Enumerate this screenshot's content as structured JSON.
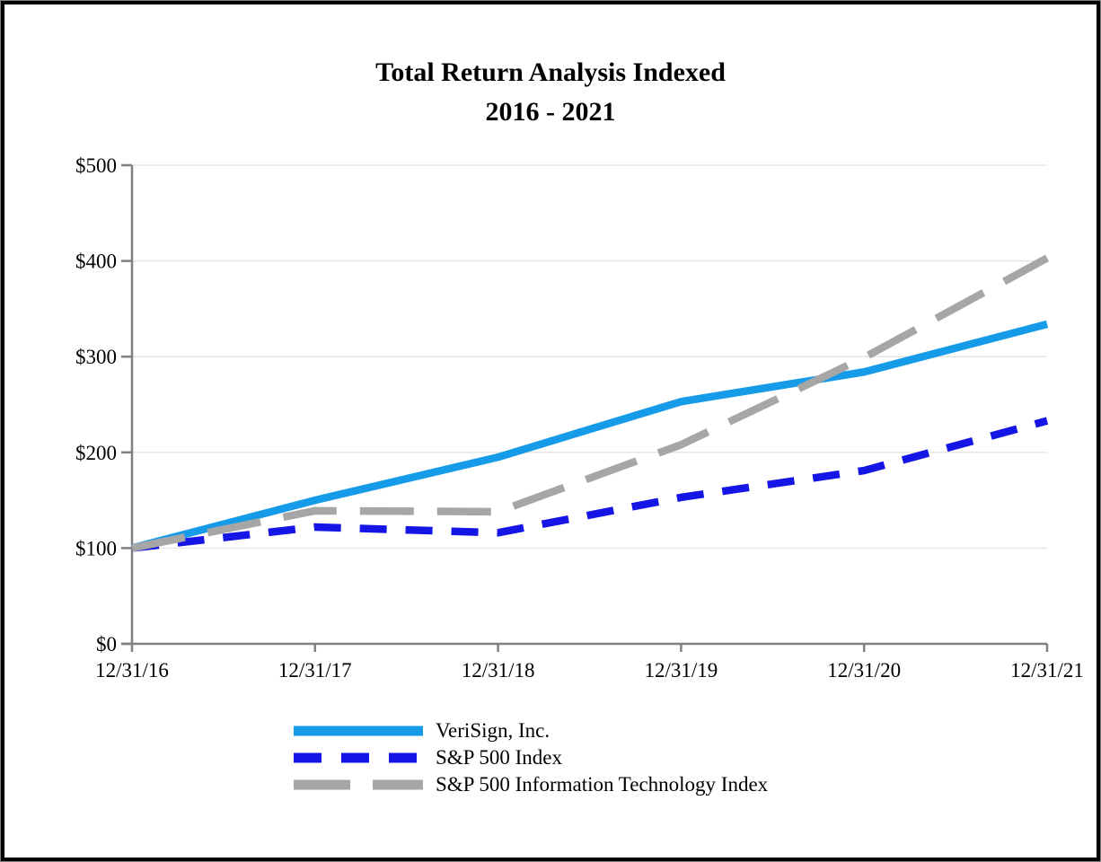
{
  "title": {
    "line1": "Total Return Analysis Indexed",
    "line2": "2016 - 2021"
  },
  "chart_data": {
    "type": "line",
    "title": "Total Return Analysis Indexed 2016 - 2021",
    "x_labels": [
      "12/31/16",
      "12/31/17",
      "12/31/18",
      "12/31/19",
      "12/31/20",
      "12/31/21"
    ],
    "y_tick_labels": [
      "$0",
      "$100",
      "$200",
      "$300",
      "$400",
      "$500"
    ],
    "ylim": [
      0,
      500
    ],
    "y_tick_step": 100,
    "grid": "horizontal",
    "legend_position": "bottom-left",
    "series": [
      {
        "name": "VeriSign, Inc.",
        "color": "#169BE9",
        "dash": "solid",
        "values": [
          100,
          150,
          195,
          253,
          284,
          334
        ]
      },
      {
        "name": "S&P 500 Index",
        "color": "#1515E6",
        "dash": "dashed",
        "values": [
          100,
          122,
          116,
          153,
          181,
          233
        ]
      },
      {
        "name": "S&P 500 Information Technology Index",
        "color": "#A6A6A6",
        "dash": "long-dash",
        "values": [
          100,
          139,
          138,
          208,
          299,
          403
        ]
      }
    ],
    "colors": {
      "axis": "#808080",
      "gridline": "#E6E6E6",
      "text": "#000000",
      "background": "#FFFFFF"
    }
  }
}
